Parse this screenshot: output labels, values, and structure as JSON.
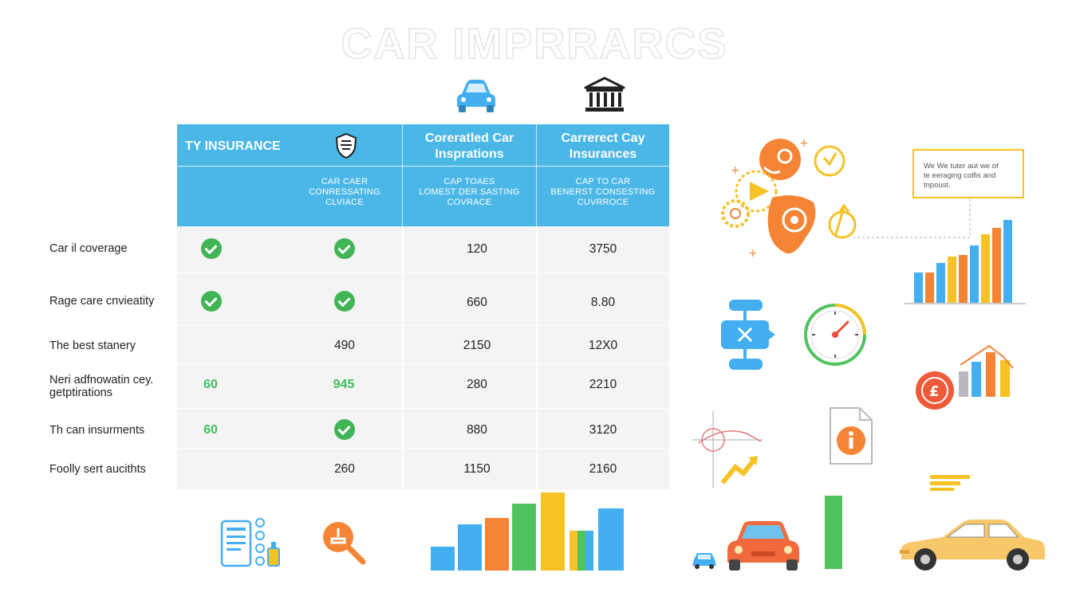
{
  "title": "CAR IMPRRARCS",
  "table": {
    "header": {
      "col1": "TY INSURANCE",
      "col2_sub": [
        "CAR CAER",
        "Conressating",
        "CLVIACE"
      ],
      "col3_main": [
        "Coreratled Car",
        "Insprations"
      ],
      "col3_sub": [
        "CAP TOAES",
        "Lomest der sasting",
        "COVRACE"
      ],
      "col4_main": [
        "Carrerect Cay",
        "Insurances"
      ],
      "col4_sub": [
        "CAP TO CAR",
        "Benerst consesting",
        "CUVRROCE"
      ]
    },
    "rows": [
      {
        "label": "Car il coverage",
        "c1": "check",
        "c2": "check",
        "c3": "120",
        "c4": "3750"
      },
      {
        "label": "Rage care cnviеatity",
        "c1": "check",
        "c2": "check",
        "c3": "660",
        "c4": "8.80"
      },
      {
        "label": "The best stanery",
        "c1": "",
        "c2": "490",
        "c3": "2150",
        "c4": "12X0"
      },
      {
        "label": [
          "Neri adfnowatin cey.",
          "getptirations"
        ],
        "c1": "60",
        "c2": "945",
        "c3": "280",
        "c4": "2210"
      },
      {
        "label": "Th can insurments",
        "c1": "60",
        "c2": "check",
        "c3": "880",
        "c4": "3120"
      },
      {
        "label": "Foolly sert aucithts",
        "c1": "",
        "c2": "260",
        "c3": "1150",
        "c4": "2160"
      }
    ]
  },
  "note": [
    "We We tuter aut we of",
    "te eeraging colfis and",
    "tnpoust."
  ],
  "colors": {
    "header": "#4ab7e7",
    "check": "#41b555",
    "orange": "#f58535",
    "yellow": "#f6c226",
    "blue": "#43aef0",
    "green": "#4fc35d"
  },
  "icons": [
    "car-icon",
    "bank-icon",
    "shield-icon",
    "gear-cluster-icon",
    "bar-chart-icon",
    "flowchart-icon",
    "speedometer-icon",
    "coin-icon",
    "graph-icon",
    "info-document-icon",
    "checklist-icon",
    "magnifier-icon",
    "red-car-icon",
    "yellow-car-icon"
  ]
}
